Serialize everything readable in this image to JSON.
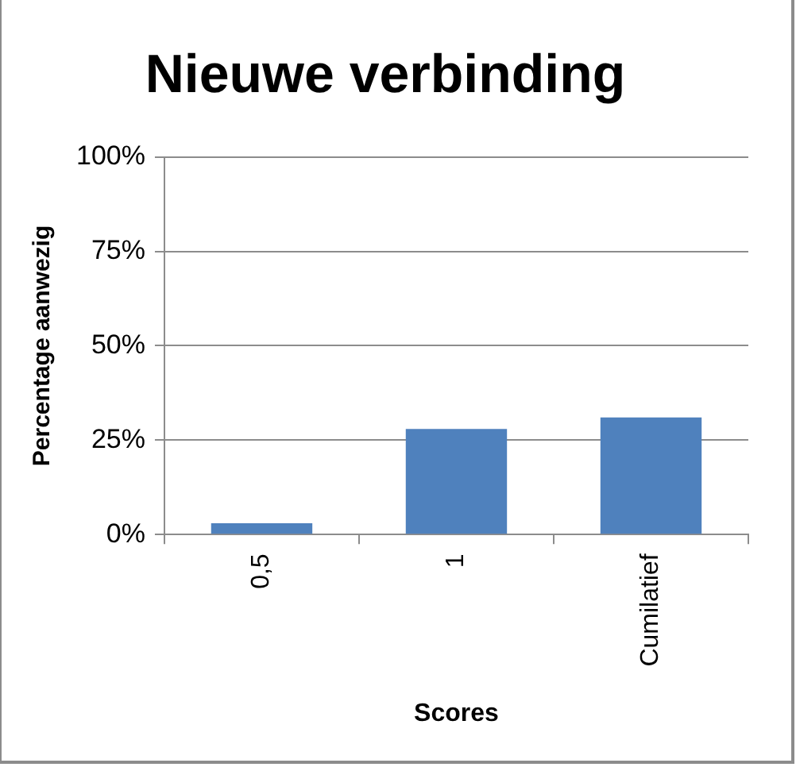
{
  "chart_data": {
    "type": "bar",
    "title": "Nieuwe verbinding",
    "xlabel": "Scores",
    "ylabel": "Percentage aanwezig",
    "categories": [
      "0,5",
      "1",
      "Cumilatief"
    ],
    "values": [
      3,
      28,
      31
    ],
    "color": "#4f81bd",
    "ylim": [
      0,
      100
    ],
    "yticks": [
      {
        "value": 0,
        "label": "0%"
      },
      {
        "value": 25,
        "label": "25%"
      },
      {
        "value": 50,
        "label": "50%"
      },
      {
        "value": 75,
        "label": "75%"
      },
      {
        "value": 100,
        "label": "100%"
      }
    ],
    "grid": "y",
    "legend": false
  }
}
